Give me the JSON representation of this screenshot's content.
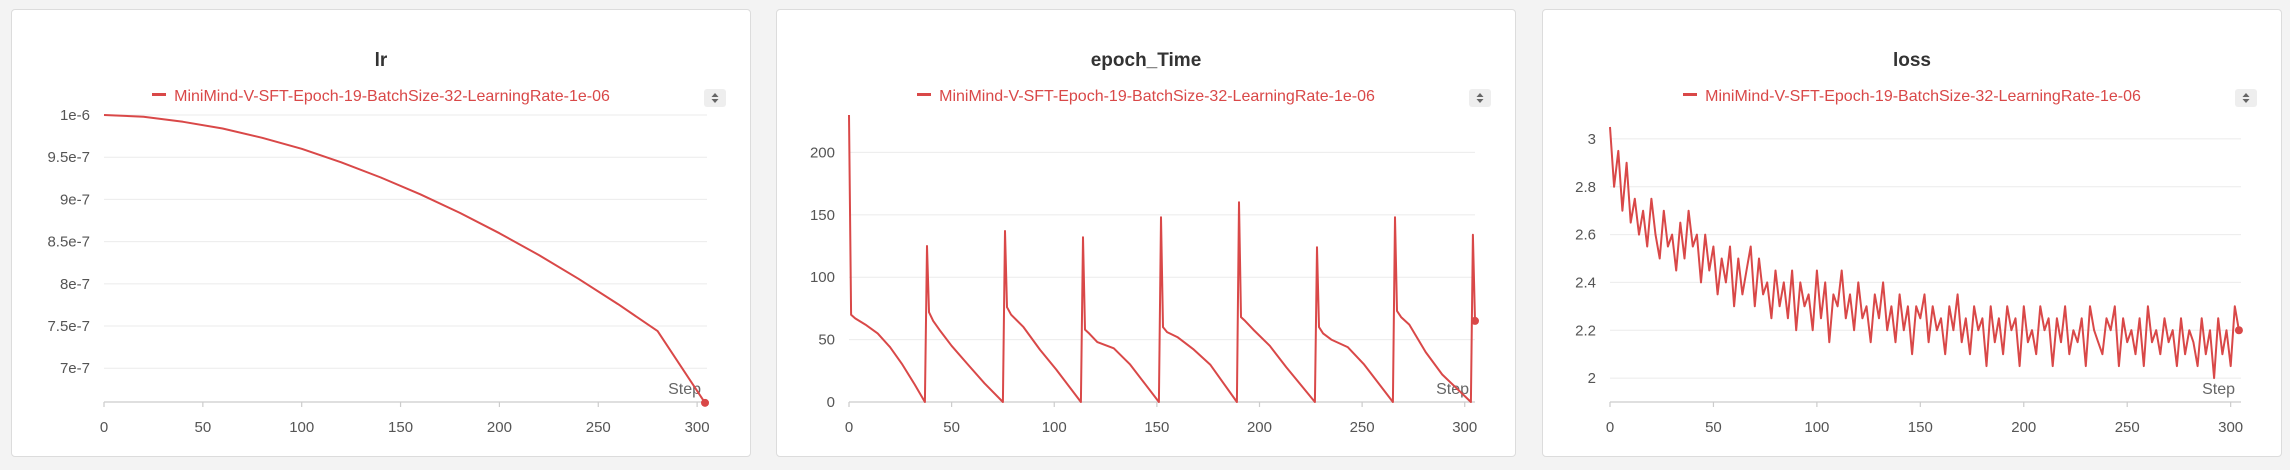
{
  "chart_data": [
    {
      "type": "line",
      "title": "lr",
      "series_color": "#d94848",
      "legend": [
        "MiniMind-V-SFT-Epoch-19-BatchSize-32-LearningRate-1e-06"
      ],
      "xlabel": "Step",
      "xlim": [
        0,
        305
      ],
      "ylim": [
        6.6e-07,
        1e-06
      ],
      "xticks": [
        0,
        50,
        100,
        150,
        200,
        250,
        300
      ],
      "yticks": [
        7e-07,
        7.5e-07,
        8e-07,
        8.5e-07,
        9e-07,
        9.5e-07,
        1e-06
      ],
      "ytick_labels": [
        "7e-7",
        "7.5e-7",
        "8e-7",
        "8.5e-7",
        "9e-7",
        "9.5e-7",
        "1e-6"
      ],
      "series": [
        {
          "name": "MiniMind-V-SFT-Epoch-19-BatchSize-32-LearningRate-1e-06",
          "x": [
            0,
            20,
            40,
            60,
            80,
            100,
            120,
            140,
            160,
            180,
            200,
            220,
            240,
            260,
            280,
            304
          ],
          "values": [
            1e-06,
            9.98e-07,
            9.92e-07,
            9.84e-07,
            9.73e-07,
            9.6e-07,
            9.44e-07,
            9.26e-07,
            9.06e-07,
            8.84e-07,
            8.6e-07,
            8.34e-07,
            8.06e-07,
            7.76e-07,
            7.44e-07,
            6.59e-07
          ]
        }
      ]
    },
    {
      "type": "line",
      "title": "epoch_Time",
      "series_color": "#d94848",
      "legend": [
        "MiniMind-V-SFT-Epoch-19-BatchSize-32-LearningRate-1e-06"
      ],
      "xlabel": "Step",
      "xlim": [
        0,
        305
      ],
      "ylim": [
        0,
        230
      ],
      "xticks": [
        0,
        50,
        100,
        150,
        200,
        250,
        300
      ],
      "yticks": [
        0,
        50,
        100,
        150,
        200
      ],
      "ytick_labels": [
        "0",
        "50",
        "100",
        "150",
        "200"
      ],
      "series": [
        {
          "name": "MiniMind-V-SFT-Epoch-19-BatchSize-32-LearningRate-1e-06",
          "x": [
            0,
            1,
            3,
            8,
            14,
            20,
            26,
            32,
            37,
            38,
            39,
            41,
            44,
            50,
            58,
            66,
            75,
            76,
            77,
            79,
            85,
            93,
            101,
            113,
            114,
            115,
            117,
            121,
            129,
            137,
            151,
            152,
            153,
            155,
            160,
            168,
            176,
            189,
            190,
            191,
            193,
            197,
            205,
            213,
            227,
            228,
            229,
            231,
            235,
            243,
            251,
            265,
            266,
            267,
            269,
            273,
            281,
            289,
            303,
            304,
            305
          ],
          "values": [
            230,
            70,
            67,
            62,
            55,
            44,
            30,
            14,
            0,
            125,
            72,
            65,
            58,
            45,
            30,
            15,
            0,
            137,
            76,
            70,
            60,
            42,
            26,
            0,
            132,
            58,
            55,
            48,
            43,
            30,
            0,
            148,
            60,
            56,
            52,
            42,
            30,
            0,
            160,
            68,
            65,
            58,
            45,
            28,
            0,
            124,
            60,
            55,
            50,
            44,
            30,
            0,
            148,
            73,
            68,
            62,
            40,
            22,
            0,
            134,
            65
          ]
        }
      ]
    },
    {
      "type": "line",
      "title": "loss",
      "series_color": "#d94848",
      "legend": [
        "MiniMind-V-SFT-Epoch-19-BatchSize-32-LearningRate-1e-06"
      ],
      "xlabel": "Step",
      "xlim": [
        0,
        305
      ],
      "ylim": [
        1.9,
        3.1
      ],
      "xticks": [
        0,
        50,
        100,
        150,
        200,
        250,
        300
      ],
      "yticks": [
        2.0,
        2.2,
        2.4,
        2.6,
        2.8,
        3.0
      ],
      "ytick_labels": [
        "2",
        "2.2",
        "2.4",
        "2.6",
        "2.8",
        "3"
      ],
      "series": [
        {
          "name": "MiniMind-V-SFT-Epoch-19-BatchSize-32-LearningRate-1e-06",
          "x": [
            0,
            2,
            4,
            6,
            8,
            10,
            12,
            14,
            16,
            18,
            20,
            22,
            24,
            26,
            28,
            30,
            32,
            34,
            36,
            38,
            40,
            42,
            44,
            46,
            48,
            50,
            52,
            54,
            56,
            58,
            60,
            62,
            64,
            66,
            68,
            70,
            72,
            74,
            76,
            78,
            80,
            82,
            84,
            86,
            88,
            90,
            92,
            94,
            96,
            98,
            100,
            102,
            104,
            106,
            108,
            110,
            112,
            114,
            116,
            118,
            120,
            122,
            124,
            126,
            128,
            130,
            132,
            134,
            136,
            138,
            140,
            142,
            144,
            146,
            148,
            150,
            152,
            154,
            156,
            158,
            160,
            162,
            164,
            166,
            168,
            170,
            172,
            174,
            176,
            178,
            180,
            182,
            184,
            186,
            188,
            190,
            192,
            194,
            196,
            198,
            200,
            202,
            204,
            206,
            208,
            210,
            212,
            214,
            216,
            218,
            220,
            222,
            224,
            226,
            228,
            230,
            232,
            234,
            236,
            238,
            240,
            242,
            244,
            246,
            248,
            250,
            252,
            254,
            256,
            258,
            260,
            262,
            264,
            266,
            268,
            270,
            272,
            274,
            276,
            278,
            280,
            282,
            284,
            286,
            288,
            290,
            292,
            294,
            296,
            298,
            300,
            302,
            304
          ],
          "values": [
            3.05,
            2.8,
            2.95,
            2.7,
            2.9,
            2.65,
            2.75,
            2.6,
            2.7,
            2.55,
            2.75,
            2.6,
            2.5,
            2.7,
            2.55,
            2.6,
            2.45,
            2.65,
            2.5,
            2.7,
            2.55,
            2.6,
            2.4,
            2.6,
            2.45,
            2.55,
            2.35,
            2.5,
            2.4,
            2.55,
            2.3,
            2.5,
            2.35,
            2.45,
            2.55,
            2.3,
            2.5,
            2.35,
            2.4,
            2.25,
            2.45,
            2.3,
            2.4,
            2.25,
            2.45,
            2.2,
            2.4,
            2.3,
            2.35,
            2.2,
            2.45,
            2.25,
            2.4,
            2.15,
            2.35,
            2.3,
            2.45,
            2.25,
            2.35,
            2.2,
            2.4,
            2.25,
            2.3,
            2.15,
            2.35,
            2.25,
            2.4,
            2.2,
            2.3,
            2.15,
            2.35,
            2.2,
            2.3,
            2.1,
            2.3,
            2.25,
            2.35,
            2.15,
            2.3,
            2.2,
            2.25,
            2.1,
            2.3,
            2.2,
            2.35,
            2.15,
            2.25,
            2.1,
            2.3,
            2.2,
            2.25,
            2.05,
            2.3,
            2.15,
            2.25,
            2.1,
            2.3,
            2.2,
            2.25,
            2.05,
            2.3,
            2.15,
            2.2,
            2.1,
            2.3,
            2.2,
            2.25,
            2.05,
            2.25,
            2.15,
            2.3,
            2.1,
            2.2,
            2.15,
            2.25,
            2.05,
            2.3,
            2.2,
            2.15,
            2.1,
            2.25,
            2.2,
            2.3,
            2.05,
            2.25,
            2.15,
            2.2,
            2.1,
            2.25,
            2.05,
            2.3,
            2.15,
            2.2,
            2.1,
            2.25,
            2.15,
            2.2,
            2.05,
            2.25,
            2.1,
            2.2,
            2.15,
            2.05,
            2.25,
            2.1,
            2.2,
            2.0,
            2.25,
            2.1,
            2.2,
            2.05,
            2.3,
            2.2
          ]
        }
      ]
    }
  ]
}
